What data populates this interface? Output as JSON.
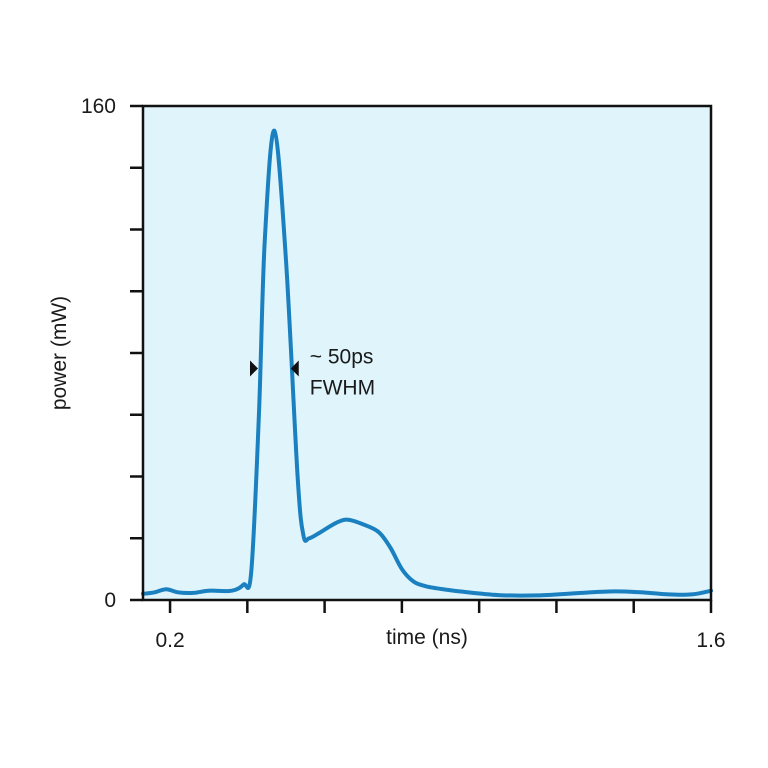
{
  "chart_data": {
    "type": "line",
    "title": "",
    "xlabel": "time (ns)",
    "ylabel": "power (mW)",
    "xlim": [
      0.13,
      1.6
    ],
    "ylim": [
      0,
      160
    ],
    "x_tick_values": [
      0.2,
      0.4,
      0.6,
      0.8,
      1.0,
      1.2,
      1.4,
      1.6
    ],
    "x_tick_labels": [
      "0.2",
      "",
      "",
      "",
      "",
      "",
      "",
      "1.6"
    ],
    "y_tick_values": [
      0,
      20,
      40,
      60,
      80,
      100,
      120,
      140,
      160
    ],
    "y_tick_labels": [
      "0",
      "",
      "",
      "",
      "",
      "",
      "",
      "",
      "160"
    ],
    "grid": false,
    "background_color": "#e0f4fb",
    "series": [
      {
        "color": "#1a80c0",
        "x": [
          0.13,
          0.16,
          0.19,
          0.22,
          0.26,
          0.3,
          0.36,
          0.39,
          0.41,
          0.43,
          0.445,
          0.47,
          0.5,
          0.53,
          0.545,
          0.56,
          0.59,
          0.63,
          0.66,
          0.7,
          0.74,
          0.77,
          0.8,
          0.83,
          0.86,
          0.89,
          0.95,
          1.05,
          1.15,
          1.25,
          1.35,
          1.43,
          1.49,
          1.55,
          1.6
        ],
        "values": [
          2,
          2.5,
          3.5,
          2.5,
          2.3,
          3,
          3,
          5,
          9,
          60,
          116,
          152,
          110,
          40,
          21,
          20,
          22,
          25,
          26,
          24.5,
          22,
          17,
          10,
          6,
          4.5,
          3.8,
          2.8,
          1.6,
          1.5,
          2.2,
          2.8,
          2.4,
          1.8,
          1.8,
          3
        ]
      }
    ],
    "annotations": [
      {
        "lines": [
          "~ 50ps",
          "FWHM"
        ],
        "marker_y": 75,
        "marker_x_left": 0.425,
        "marker_x_right": 0.515
      }
    ]
  },
  "colors": {
    "plot_background": "#e0f4fb",
    "line": "#1a80c0",
    "axis": "#111111"
  }
}
